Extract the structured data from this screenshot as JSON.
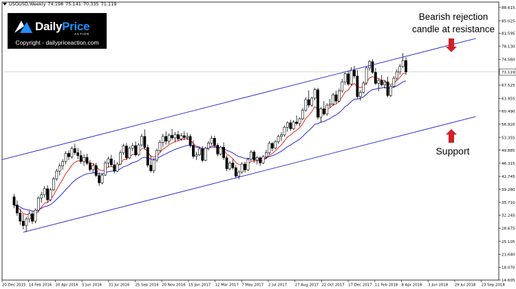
{
  "header": {
    "symbol": "USOUSD,Weekly",
    "open": "74.198",
    "high": "75.141",
    "low": "70.335",
    "close": "71.119"
  },
  "logo": {
    "brand_a": "Daily",
    "brand_b": "Price",
    "brand_sub": "ACTION",
    "copyright": "Copyright - dailypriceaction.com"
  },
  "annotations": {
    "top": [
      "Bearish rejection",
      "candle at resistance"
    ],
    "support": "Support"
  },
  "colors": {
    "channel": "#1f1fd6",
    "ema_fast": "#e8261f",
    "ema_slow": "#2424e0",
    "arrow": "#d31f26",
    "candle_bull": "#ffffff",
    "candle_bear": "#000000",
    "price_line": "#c8c8c8"
  },
  "chart_data": {
    "type": "candlestick",
    "symbol": "USOUSD",
    "timeframe": "Weekly",
    "ylim": [
      14.605,
      90.08
    ],
    "last_price": 71.119,
    "y_ticks": [
      88.615,
      85.025,
      81.595,
      78.13,
      74.56,
      71.119,
      67.525,
      63.955,
      60.49,
      56.92,
      53.355,
      49.885,
      46.315,
      42.745,
      39.28,
      35.71,
      32.245,
      28.675,
      25.105,
      21.64,
      18.07,
      14.605
    ],
    "x_labels": [
      "20 Dec 2015",
      "14 Feb 2016",
      "10 Apr 2016",
      "5 Jun 2016",
      "31 Jul 2016",
      "25 Sep 2016",
      "20 Nov 2016",
      "15 Jan 2017",
      "12 Mar 2017",
      "7 May 2017",
      "2 Jul 2017",
      "27 Aug 2017",
      "22 Oct 2017",
      "17 Dec 2017",
      "11 Feb 2018",
      "8 Apr 2018",
      "3 Jun 2018",
      "29 Jul 2018",
      "23 Sep 2018"
    ],
    "candles": [
      [
        37.2,
        38.0,
        34.1,
        35.0
      ],
      [
        35.0,
        36.2,
        32.0,
        32.8
      ],
      [
        32.8,
        34.0,
        29.6,
        30.6
      ],
      [
        30.6,
        32.5,
        28.4,
        29.4
      ],
      [
        29.4,
        31.8,
        27.6,
        31.2
      ],
      [
        31.2,
        33.4,
        30.2,
        32.6
      ],
      [
        32.6,
        33.2,
        29.8,
        30.6
      ],
      [
        30.6,
        34.1,
        30.0,
        33.6
      ],
      [
        33.6,
        37.4,
        33.0,
        36.9
      ],
      [
        36.9,
        38.6,
        35.6,
        37.8
      ],
      [
        37.8,
        40.1,
        37.0,
        39.4
      ],
      [
        39.4,
        40.4,
        35.6,
        36.4
      ],
      [
        36.4,
        39.6,
        36.0,
        39.1
      ],
      [
        39.1,
        42.6,
        38.8,
        42.1
      ],
      [
        42.1,
        44.8,
        41.5,
        44.2
      ],
      [
        44.2,
        46.3,
        43.0,
        45.6
      ],
      [
        45.6,
        47.4,
        44.6,
        46.8
      ],
      [
        46.8,
        49.6,
        46.0,
        49.0
      ],
      [
        49.0,
        49.8,
        47.2,
        48.1
      ],
      [
        48.1,
        50.9,
        47.6,
        50.3
      ],
      [
        50.3,
        51.6,
        48.6,
        49.2
      ],
      [
        49.2,
        50.5,
        47.4,
        48.4
      ],
      [
        48.4,
        49.8,
        46.2,
        46.8
      ],
      [
        46.8,
        48.7,
        45.6,
        47.9
      ],
      [
        47.9,
        48.9,
        45.8,
        46.3
      ],
      [
        46.3,
        47.2,
        44.0,
        44.6
      ],
      [
        44.6,
        46.3,
        43.6,
        45.7
      ],
      [
        45.7,
        46.4,
        42.5,
        43.0
      ],
      [
        43.0,
        43.9,
        40.2,
        41.0
      ],
      [
        41.0,
        43.6,
        40.6,
        43.1
      ],
      [
        43.1,
        47.0,
        42.9,
        46.4
      ],
      [
        46.4,
        48.1,
        45.2,
        47.5
      ],
      [
        47.5,
        48.6,
        45.4,
        45.9
      ],
      [
        45.9,
        47.2,
        43.6,
        44.2
      ],
      [
        44.2,
        46.6,
        43.9,
        46.1
      ],
      [
        46.1,
        49.8,
        45.8,
        49.2
      ],
      [
        49.2,
        51.6,
        48.6,
        51.0
      ],
      [
        51.0,
        51.8,
        47.2,
        47.8
      ],
      [
        47.8,
        50.9,
        47.4,
        50.4
      ],
      [
        50.4,
        51.8,
        49.6,
        51.1
      ],
      [
        51.1,
        52.2,
        48.1,
        48.6
      ],
      [
        48.6,
        51.8,
        48.3,
        51.3
      ],
      [
        51.3,
        54.3,
        50.8,
        53.6
      ],
      [
        53.6,
        55.5,
        50.0,
        50.6
      ],
      [
        50.6,
        51.4,
        45.2,
        45.8
      ],
      [
        45.8,
        48.5,
        43.8,
        44.3
      ],
      [
        44.3,
        47.6,
        43.6,
        47.2
      ],
      [
        47.2,
        50.3,
        46.6,
        49.8
      ],
      [
        49.8,
        52.6,
        49.3,
        52.0
      ],
      [
        52.0,
        54.3,
        50.8,
        53.6
      ],
      [
        53.6,
        55.0,
        51.4,
        52.3
      ],
      [
        52.3,
        54.4,
        51.6,
        53.9
      ],
      [
        53.9,
        55.6,
        52.6,
        53.2
      ],
      [
        53.2,
        54.8,
        52.0,
        54.1
      ],
      [
        54.1,
        55.1,
        52.4,
        52.9
      ],
      [
        52.9,
        54.5,
        52.4,
        53.8
      ],
      [
        53.8,
        55.0,
        52.6,
        53.3
      ],
      [
        53.3,
        54.6,
        52.6,
        53.6
      ],
      [
        53.6,
        54.2,
        50.6,
        51.2
      ],
      [
        51.2,
        52.5,
        47.6,
        48.2
      ],
      [
        48.2,
        49.4,
        47.2,
        48.6
      ],
      [
        48.6,
        50.6,
        48.3,
        50.2
      ],
      [
        50.2,
        51.0,
        46.6,
        47.1
      ],
      [
        47.1,
        50.8,
        46.9,
        50.4
      ],
      [
        50.4,
        52.4,
        49.8,
        51.8
      ],
      [
        51.8,
        53.8,
        51.3,
        53.1
      ],
      [
        53.1,
        53.8,
        50.6,
        51.2
      ],
      [
        51.2,
        51.8,
        48.2,
        48.8
      ],
      [
        48.8,
        51.1,
        48.4,
        50.7
      ],
      [
        50.7,
        52.0,
        47.2,
        47.8
      ],
      [
        47.8,
        48.5,
        44.2,
        44.8
      ],
      [
        44.8,
        46.9,
        44.4,
        46.4
      ],
      [
        46.4,
        47.4,
        44.6,
        45.1
      ],
      [
        45.1,
        45.8,
        42.2,
        42.8
      ],
      [
        42.8,
        44.4,
        42.0,
        43.9
      ],
      [
        43.9,
        46.6,
        43.4,
        46.1
      ],
      [
        46.1,
        46.7,
        43.8,
        44.5
      ],
      [
        44.5,
        47.8,
        44.2,
        47.4
      ],
      [
        47.4,
        49.9,
        46.9,
        49.4
      ],
      [
        49.4,
        49.9,
        46.5,
        47.2
      ],
      [
        47.2,
        48.3,
        46.0,
        47.8
      ],
      [
        47.8,
        48.2,
        45.6,
        46.4
      ],
      [
        46.4,
        48.6,
        46.1,
        48.1
      ],
      [
        48.1,
        50.0,
        47.4,
        49.2
      ],
      [
        49.2,
        52.3,
        48.7,
        51.7
      ],
      [
        51.7,
        52.1,
        49.6,
        50.4
      ],
      [
        50.4,
        52.6,
        50.1,
        52.2
      ],
      [
        52.2,
        54.1,
        51.6,
        53.6
      ],
      [
        53.6,
        54.8,
        52.4,
        54.0
      ],
      [
        54.0,
        56.6,
        53.5,
        56.1
      ],
      [
        56.1,
        57.7,
        54.9,
        57.3
      ],
      [
        57.3,
        58.1,
        55.1,
        55.7
      ],
      [
        55.7,
        58.0,
        55.3,
        57.5
      ],
      [
        57.5,
        59.3,
        56.6,
        57.1
      ],
      [
        57.1,
        58.8,
        56.3,
        58.4
      ],
      [
        58.4,
        61.3,
        58.0,
        60.7
      ],
      [
        60.7,
        64.2,
        60.3,
        63.6
      ],
      [
        63.6,
        66.1,
        61.4,
        62.1
      ],
      [
        62.1,
        64.4,
        61.6,
        64.0
      ],
      [
        64.0,
        66.8,
        63.4,
        66.3
      ],
      [
        66.3,
        66.8,
        58.2,
        58.8
      ],
      [
        58.8,
        61.6,
        57.4,
        61.1
      ],
      [
        61.1,
        63.2,
        59.2,
        59.7
      ],
      [
        59.7,
        62.6,
        59.2,
        62.1
      ],
      [
        62.1,
        63.8,
        61.4,
        62.4
      ],
      [
        62.4,
        65.4,
        61.9,
        64.9
      ],
      [
        64.9,
        66.0,
        62.6,
        63.2
      ],
      [
        63.2,
        66.6,
        62.8,
        66.0
      ],
      [
        66.0,
        69.2,
        65.5,
        68.4
      ],
      [
        68.4,
        71.0,
        67.6,
        70.6
      ],
      [
        70.6,
        71.4,
        67.3,
        67.8
      ],
      [
        67.8,
        72.4,
        67.4,
        71.6
      ],
      [
        71.6,
        72.8,
        69.3,
        70.0
      ],
      [
        70.0,
        71.6,
        63.8,
        64.4
      ],
      [
        64.4,
        66.2,
        63.3,
        65.6
      ],
      [
        65.6,
        68.6,
        65.2,
        68.1
      ],
      [
        68.1,
        72.7,
        67.6,
        72.2
      ],
      [
        72.2,
        74.4,
        71.4,
        73.9
      ],
      [
        73.9,
        74.6,
        70.6,
        71.0
      ],
      [
        71.0,
        72.2,
        67.6,
        68.0
      ],
      [
        68.0,
        69.3,
        65.9,
        68.8
      ],
      [
        68.8,
        70.2,
        67.1,
        67.6
      ],
      [
        67.6,
        68.9,
        66.6,
        68.4
      ],
      [
        68.4,
        69.8,
        64.2,
        64.7
      ],
      [
        64.7,
        67.6,
        64.3,
        67.2
      ],
      [
        67.2,
        70.0,
        66.8,
        69.4
      ],
      [
        69.4,
        71.8,
        68.8,
        71.1
      ],
      [
        71.1,
        73.3,
        70.4,
        72.6
      ],
      [
        72.6,
        76.2,
        72.2,
        74.2
      ],
      [
        74.2,
        75.1,
        70.3,
        71.1
      ]
    ],
    "series": [
      {
        "name": "",
        "kind": "ema",
        "period": 8,
        "color": "#e8261f"
      },
      {
        "name": "",
        "kind": "ema",
        "period": 21,
        "color": "#2424e0"
      }
    ],
    "channel": {
      "resistance": {
        "from": {
          "candle": -4,
          "price": 47.3
        },
        "to": {
          "candle": 152,
          "price": 80.2
        }
      },
      "support": {
        "from": {
          "candle": 3,
          "price": 27.6
        },
        "to": {
          "candle": 152,
          "price": 59.0
        }
      }
    },
    "annotations": [
      {
        "text": "Bearish rejection candle at resistance",
        "arrow": "down",
        "candle": 127
      },
      {
        "text": "Support",
        "arrow": "up",
        "candle": 127
      }
    ]
  }
}
